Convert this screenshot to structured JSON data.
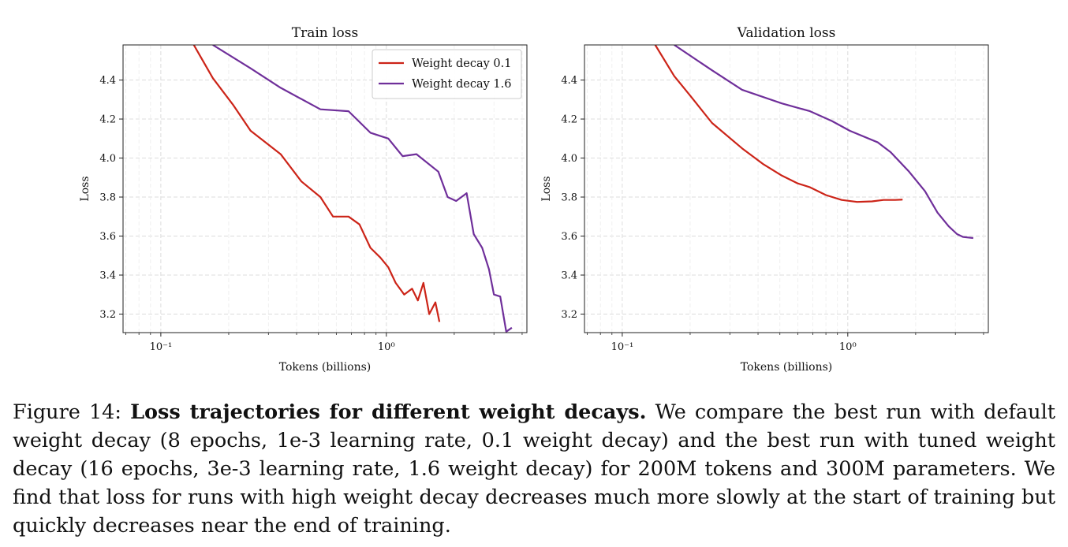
{
  "chart_data": [
    {
      "type": "line",
      "title": "Train loss",
      "xlabel": "Tokens (billions)",
      "ylabel": "Loss",
      "xscale": "log",
      "xlim": [
        0.068,
        4.2
      ],
      "ylim": [
        3.105,
        4.58
      ],
      "xticks_major": [
        {
          "value": 0.1,
          "label": "10⁻¹"
        },
        {
          "value": 1,
          "label": "10⁰"
        }
      ],
      "yticks": [
        3.2,
        3.4,
        3.6,
        3.8,
        4.0,
        4.2,
        4.4
      ],
      "grid": true,
      "legend": "top-right",
      "series": [
        {
          "name": "Weight decay 0.1",
          "color": "#cc2418",
          "points": [
            [
              0.14,
              4.58
            ],
            [
              0.17,
              4.41
            ],
            [
              0.21,
              4.27
            ],
            [
              0.25,
              4.14
            ],
            [
              0.34,
              4.02
            ],
            [
              0.42,
              3.88
            ],
            [
              0.51,
              3.8
            ],
            [
              0.58,
              3.7
            ],
            [
              0.68,
              3.7
            ],
            [
              0.76,
              3.66
            ],
            [
              0.85,
              3.54
            ],
            [
              0.94,
              3.49
            ],
            [
              1.02,
              3.44
            ],
            [
              1.1,
              3.36
            ],
            [
              1.2,
              3.3
            ],
            [
              1.3,
              3.33
            ],
            [
              1.38,
              3.27
            ],
            [
              1.46,
              3.36
            ],
            [
              1.55,
              3.2
            ],
            [
              1.65,
              3.26
            ],
            [
              1.72,
              3.16
            ]
          ]
        },
        {
          "name": "Weight decay 1.6",
          "color": "#6f2f9a",
          "points": [
            [
              0.17,
              4.58
            ],
            [
              0.25,
              4.46
            ],
            [
              0.34,
              4.36
            ],
            [
              0.51,
              4.25
            ],
            [
              0.68,
              4.24
            ],
            [
              0.85,
              4.13
            ],
            [
              1.02,
              4.1
            ],
            [
              1.18,
              4.01
            ],
            [
              1.36,
              4.02
            ],
            [
              1.7,
              3.93
            ],
            [
              1.87,
              3.8
            ],
            [
              2.04,
              3.78
            ],
            [
              2.27,
              3.82
            ],
            [
              2.44,
              3.61
            ],
            [
              2.66,
              3.54
            ],
            [
              2.85,
              3.43
            ],
            [
              3.0,
              3.3
            ],
            [
              3.2,
              3.29
            ],
            [
              3.4,
              3.11
            ],
            [
              3.6,
              3.13
            ]
          ]
        }
      ]
    },
    {
      "type": "line",
      "title": "Validation loss",
      "xlabel": "Tokens (billions)",
      "ylabel": "Loss",
      "xscale": "log",
      "xlim": [
        0.068,
        4.2
      ],
      "ylim": [
        3.105,
        4.58
      ],
      "xticks_major": [
        {
          "value": 0.1,
          "label": "10⁻¹"
        },
        {
          "value": 1,
          "label": "10⁰"
        }
      ],
      "yticks": [
        3.2,
        3.4,
        3.6,
        3.8,
        4.0,
        4.2,
        4.4
      ],
      "grid": true,
      "legend": "",
      "series": [
        {
          "name": "Weight decay 0.1",
          "color": "#cc2418",
          "points": [
            [
              0.14,
              4.58
            ],
            [
              0.17,
              4.42
            ],
            [
              0.2,
              4.32
            ],
            [
              0.25,
              4.18
            ],
            [
              0.34,
              4.05
            ],
            [
              0.42,
              3.97
            ],
            [
              0.51,
              3.91
            ],
            [
              0.6,
              3.87
            ],
            [
              0.68,
              3.85
            ],
            [
              0.8,
              3.81
            ],
            [
              0.94,
              3.785
            ],
            [
              1.1,
              3.775
            ],
            [
              1.28,
              3.778
            ],
            [
              1.44,
              3.785
            ],
            [
              1.62,
              3.785
            ],
            [
              1.75,
              3.787
            ]
          ]
        },
        {
          "name": "Weight decay 1.6",
          "color": "#6f2f9a",
          "points": [
            [
              0.17,
              4.58
            ],
            [
              0.25,
              4.45
            ],
            [
              0.34,
              4.35
            ],
            [
              0.51,
              4.28
            ],
            [
              0.68,
              4.24
            ],
            [
              0.85,
              4.19
            ],
            [
              1.02,
              4.14
            ],
            [
              1.36,
              4.08
            ],
            [
              1.55,
              4.03
            ],
            [
              1.87,
              3.93
            ],
            [
              2.2,
              3.83
            ],
            [
              2.5,
              3.72
            ],
            [
              2.8,
              3.65
            ],
            [
              3.05,
              3.61
            ],
            [
              3.25,
              3.595
            ],
            [
              3.6,
              3.59
            ]
          ]
        }
      ]
    }
  ],
  "caption": {
    "figure_label": "Figure 14:",
    "bold_title": "Loss trajectories for different weight decays.",
    "text": "We compare the best run with default weight decay (8 epochs, 1e-3 learning rate, 0.1 weight decay) and the best run with tuned weight decay (16 epochs, 3e-3 learning rate, 1.6 weight decay) for 200M tokens and 300M parameters. We find that loss for runs with high weight decay decreases much more slowly at the start of training but quickly decreases near the end of training."
  }
}
